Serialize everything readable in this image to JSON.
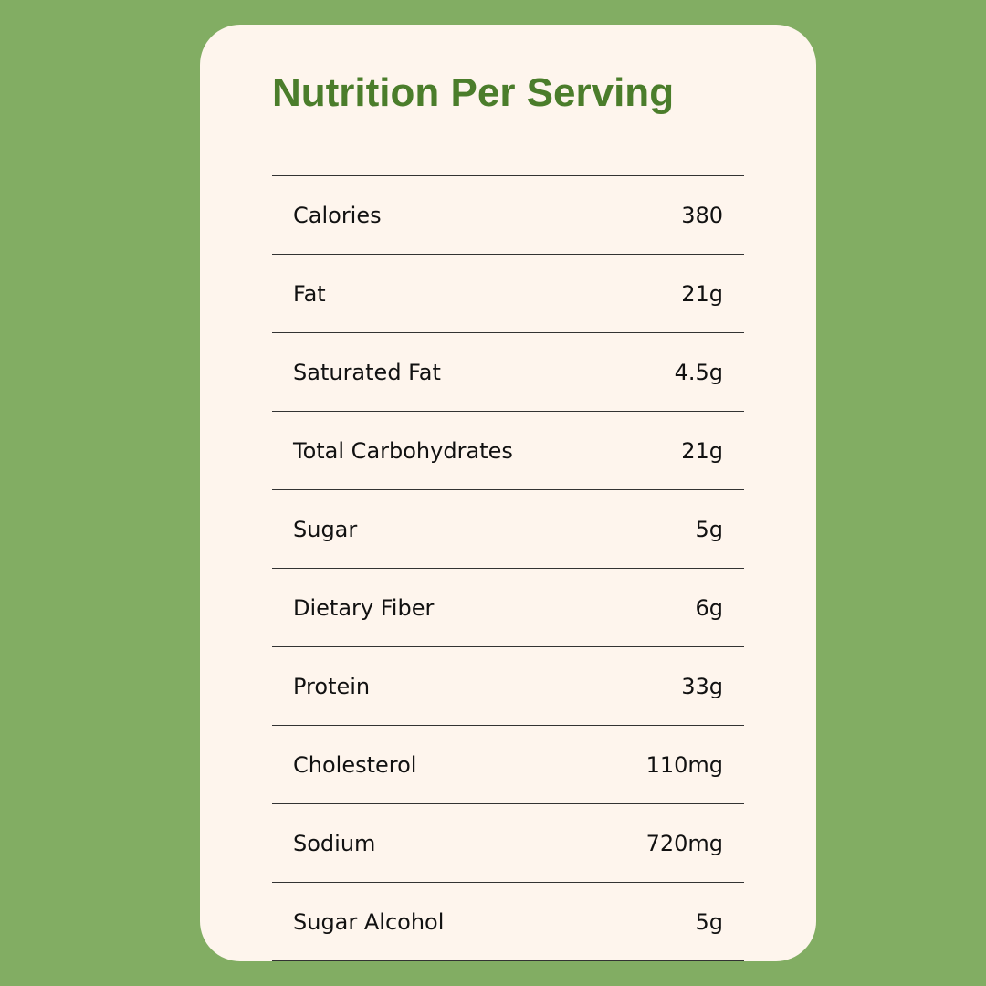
{
  "title": "Nutrition Per Serving",
  "table": {
    "rows": [
      [
        "Calories",
        "380"
      ],
      [
        "Fat",
        "21g"
      ],
      [
        "Saturated Fat",
        "4.5g"
      ],
      [
        "Total Carbohydrates",
        "21g"
      ],
      [
        "Sugar",
        "5g"
      ],
      [
        "Dietary Fiber",
        "6g"
      ],
      [
        "Protein",
        "33g"
      ],
      [
        "Cholesterol",
        "110mg"
      ],
      [
        "Sodium",
        "720mg"
      ],
      [
        "Sugar Alcohol",
        "5g"
      ]
    ]
  }
}
